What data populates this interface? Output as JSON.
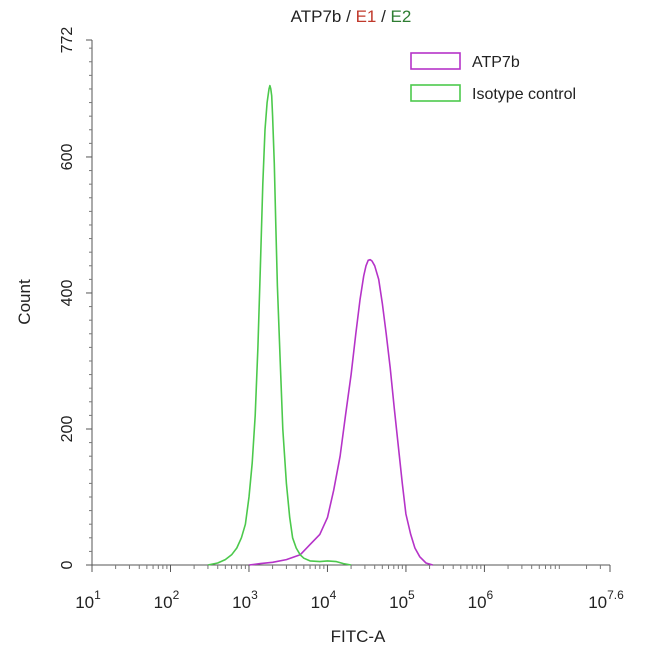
{
  "chart_data": {
    "type": "line",
    "title_parts": [
      {
        "text": "ATP7b",
        "color": "#222222"
      },
      {
        "text": " / ",
        "color": "#222222"
      },
      {
        "text": "E1",
        "color": "#c0392b"
      },
      {
        "text": " / ",
        "color": "#222222"
      },
      {
        "text": "E2",
        "color": "#2e7d32"
      }
    ],
    "xlabel": "FITC-A",
    "ylabel": "Count",
    "x_scale": "log10",
    "xlim": [
      10,
      39810717
    ],
    "ylim": [
      0,
      772
    ],
    "x_ticks": [
      {
        "value": 10,
        "base": "10",
        "exp": "1"
      },
      {
        "value": 100,
        "base": "10",
        "exp": "2"
      },
      {
        "value": 1000,
        "base": "10",
        "exp": "3"
      },
      {
        "value": 10000,
        "base": "10",
        "exp": "4"
      },
      {
        "value": 100000,
        "base": "10",
        "exp": "5"
      },
      {
        "value": 1000000,
        "base": "10",
        "exp": "6"
      },
      {
        "value": 39810717,
        "base": "10",
        "exp": "7.6"
      }
    ],
    "y_ticks": [
      0,
      200,
      400,
      600,
      772
    ],
    "legend_position": "top-right",
    "series": [
      {
        "name": "ATP7b",
        "color": "#b533c8",
        "x": [
          1000,
          1400,
          2000,
          3000,
          4500,
          6000,
          8000,
          10000,
          12000,
          14500,
          17000,
          20000,
          23000,
          26000,
          29000,
          31000,
          33000,
          35000,
          37000,
          40000,
          45000,
          50000,
          56000,
          63000,
          71000,
          80000,
          90000,
          100000,
          115000,
          130000,
          150000,
          180000,
          220000
        ],
        "y": [
          0,
          2,
          4,
          8,
          15,
          30,
          45,
          70,
          110,
          160,
          220,
          280,
          340,
          390,
          425,
          440,
          448,
          449,
          447,
          440,
          420,
          385,
          340,
          290,
          230,
          175,
          120,
          75,
          45,
          25,
          12,
          3,
          0
        ]
      },
      {
        "name": "Isotype control",
        "color": "#4cc94c",
        "x": [
          300,
          400,
          500,
          600,
          700,
          800,
          900,
          1000,
          1100,
          1200,
          1300,
          1400,
          1500,
          1600,
          1700,
          1800,
          1850,
          1900,
          1950,
          2000,
          2100,
          2200,
          2300,
          2500,
          2700,
          3000,
          3300,
          3600,
          4000,
          4500,
          5000,
          6000,
          8000,
          10000,
          13000,
          16000,
          20000
        ],
        "y": [
          0,
          3,
          8,
          15,
          25,
          40,
          60,
          100,
          150,
          220,
          320,
          440,
          560,
          640,
          680,
          700,
          705,
          700,
          690,
          660,
          590,
          500,
          410,
          300,
          200,
          120,
          70,
          40,
          25,
          15,
          10,
          6,
          5,
          6,
          5,
          2,
          0
        ]
      }
    ]
  }
}
